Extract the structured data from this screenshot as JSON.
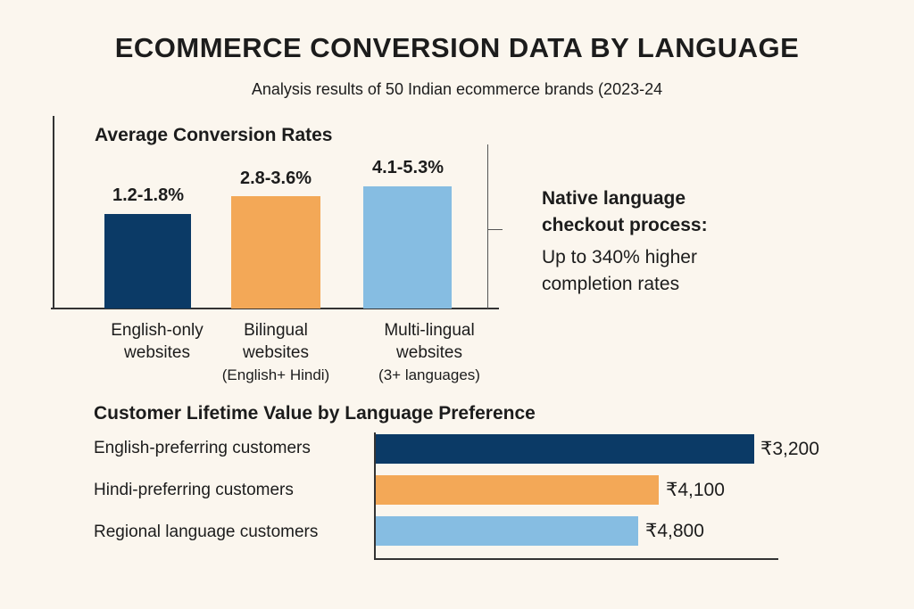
{
  "title": "ECOMMERCE CONVERSION DATA BY LANGUAGE",
  "subtitle": "Analysis results of 50 Indian ecommerce brands (2023-24",
  "callout": {
    "heading_line1": "Native language",
    "heading_line2": "checkout process:",
    "body_line1": "Up to 340% higher",
    "body_line2": "completion rates"
  },
  "colors": {
    "english": "#0b3a66",
    "hindi": "#f3a857",
    "regional": "#86bde2",
    "background": "#fbf6ee"
  },
  "chart_data": [
    {
      "type": "bar",
      "title": "Average Conversion Rates",
      "categories": [
        [
          "English-only",
          "websites",
          ""
        ],
        [
          "Bilingual",
          "websites",
          "(English+ Hindi)"
        ],
        [
          "Multi-lingual",
          "websites",
          "(3+ languages)"
        ]
      ],
      "value_labels": [
        "1.2-1.8%",
        "2.8-3.6%",
        "4.1-5.3%"
      ],
      "ranges": [
        [
          1.2,
          1.8
        ],
        [
          2.8,
          3.6
        ],
        [
          4.1,
          5.3
        ]
      ],
      "xlabel": "",
      "ylabel": "",
      "grid": false
    },
    {
      "type": "bar",
      "orientation": "horizontal",
      "title": "Customer Lifetime Value by Language Preference",
      "categories": [
        "English-preferring customers",
        "Hindi-preferring customers",
        "Regional language customers"
      ],
      "values": [
        3200,
        4100,
        4800
      ],
      "value_labels": [
        "₹3,200",
        "₹4,100",
        "₹4,800"
      ],
      "unit": "₹",
      "grid": false
    }
  ]
}
